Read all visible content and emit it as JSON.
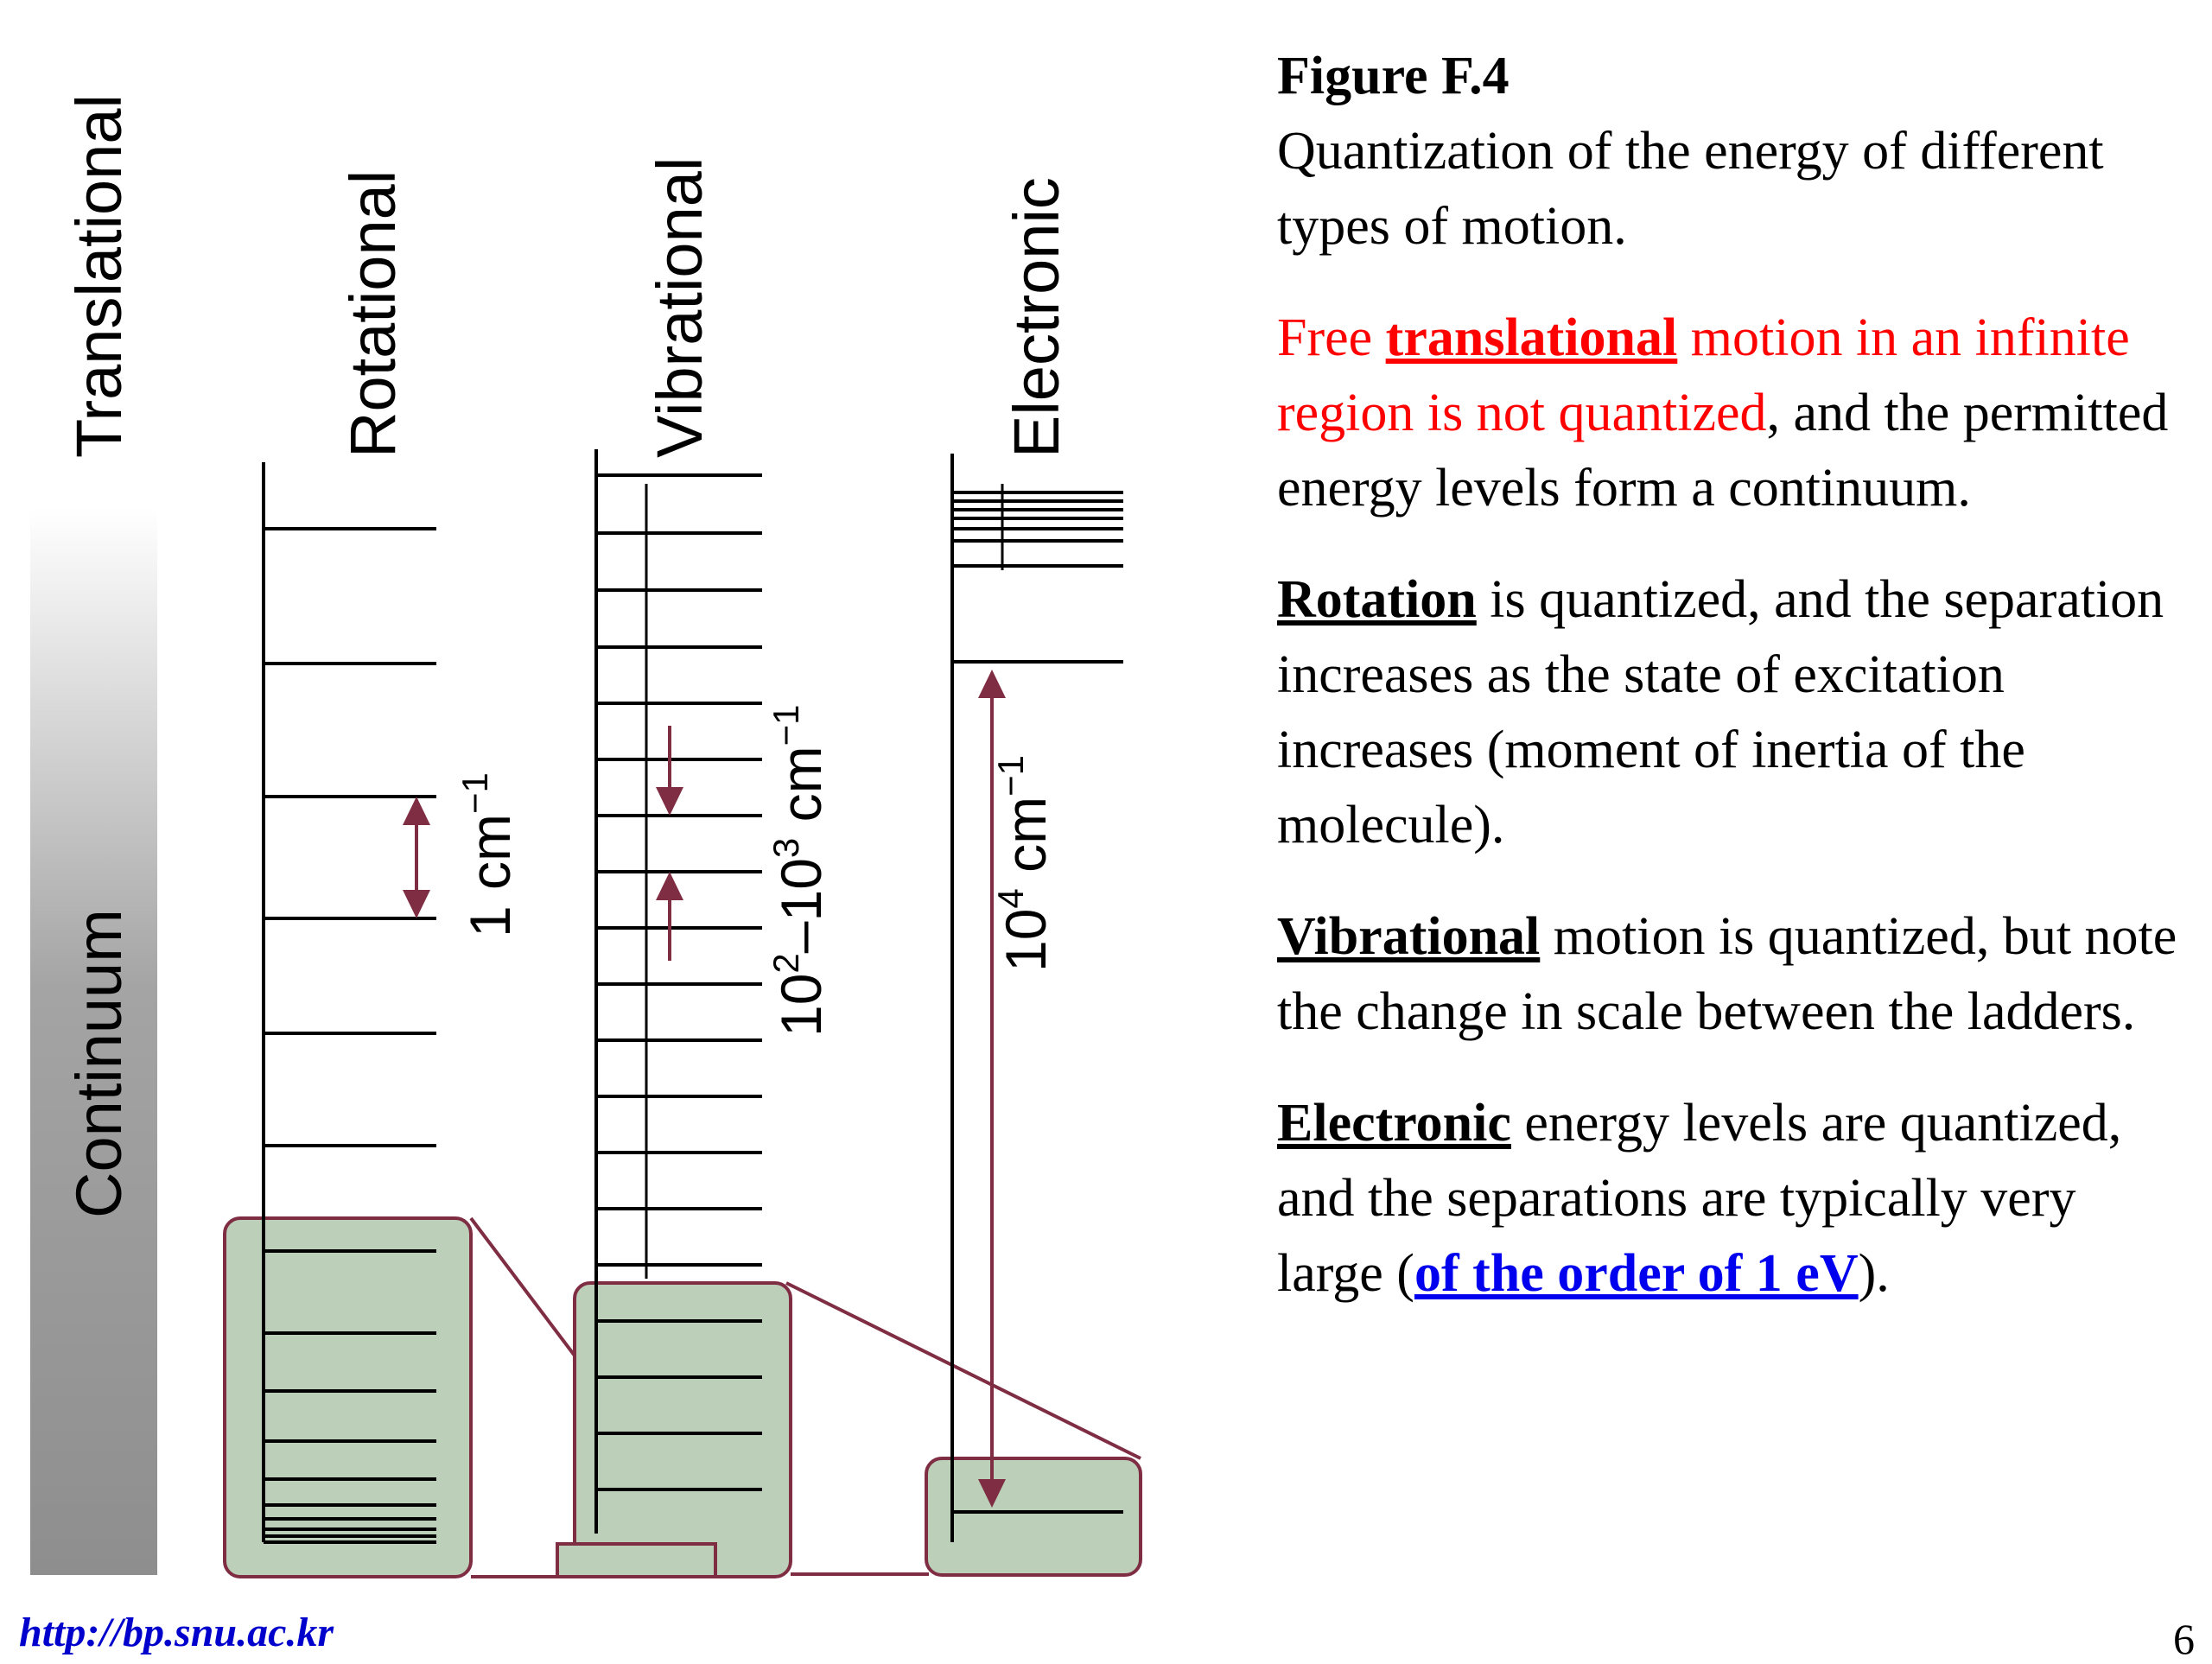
{
  "diagram": {
    "continuum_label": "Continuum",
    "translational_label": "Translational",
    "ladders": [
      {
        "name": "Rotational",
        "separation_label": "1 cm",
        "separation_exp": "−1"
      },
      {
        "name": "Vibrational",
        "separation_label": "10",
        "separation_exp1": "2",
        "separation_mid": "–10",
        "separation_exp2": "3",
        "separation_unit": " cm",
        "separation_exp3": "−1"
      },
      {
        "name": "Electronic",
        "separation_label": "10",
        "separation_exp1": "4",
        "separation_unit": " cm",
        "separation_exp2": "−1"
      }
    ],
    "colors": {
      "arrow": "#7f2d43",
      "zoom_fill": "#bccfb8",
      "continuum_top": "#ffffff",
      "continuum_bottom": "#8e8e8e"
    }
  },
  "caption": {
    "title": "Figure F.4",
    "intro": "Quantization of the energy of different types of motion.",
    "p1_free": "Free ",
    "p1_key": "translational",
    "p1_red_rest": " motion in an infinite region is not quantized",
    "p1_rest": ", and the permitted energy levels form a continuum.",
    "p2_key": "Rotation",
    "p2_rest": " is quantized, and the separation increases as the state of excitation increases (moment of inertia of the molecule).",
    "p3_key": "Vibrational",
    "p3_rest": " motion is quantized, but note the change in scale between the ladders.",
    "p4_key": "Electronic",
    "p4_rest": " energy levels are quantized, and the separations are typically very large (",
    "p4_link": "of the order of 1 eV",
    "p4_end": ")."
  },
  "footer": {
    "url": "http://bp.snu.ac.kr",
    "page_number": "6"
  }
}
